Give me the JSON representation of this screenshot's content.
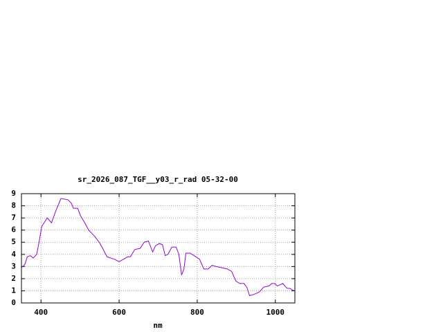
{
  "chart_data": {
    "type": "line",
    "title": "sr_2026_087_TGF__y03_r_rad 05-32-00",
    "x_label": "nm",
    "x": [
      350,
      359,
      365,
      373,
      380,
      389,
      395,
      402,
      416,
      427,
      437,
      451,
      469,
      478,
      483,
      494,
      501,
      512,
      522,
      537,
      549,
      558,
      569,
      579,
      588,
      600,
      611,
      622,
      629,
      640,
      654,
      664,
      675,
      686,
      693,
      703,
      711,
      718,
      725,
      735,
      746,
      753,
      760,
      766,
      771,
      782,
      792,
      806,
      817,
      828,
      838,
      849,
      863,
      877,
      888,
      899,
      909,
      920,
      927,
      934,
      945,
      959,
      970,
      984,
      991,
      998,
      1005,
      1019,
      1030,
      1037,
      1048
    ],
    "series": [
      {
        "name": null,
        "color": "#9400d3",
        "values": [
          2.9,
          3.2,
          3.8,
          3.9,
          3.7,
          4.0,
          5.0,
          6.3,
          7.0,
          6.6,
          7.5,
          8.6,
          8.5,
          8.2,
          7.8,
          7.8,
          7.2,
          6.6,
          6.0,
          5.5,
          5.0,
          4.5,
          3.8,
          3.7,
          3.6,
          3.4,
          3.6,
          3.8,
          3.8,
          4.4,
          4.5,
          5.0,
          5.1,
          4.2,
          4.7,
          4.9,
          4.8,
          3.9,
          4.0,
          4.6,
          4.6,
          4.0,
          2.3,
          2.8,
          4.1,
          4.1,
          3.9,
          3.6,
          2.8,
          2.8,
          3.1,
          3.0,
          2.9,
          2.8,
          2.6,
          1.8,
          1.6,
          1.6,
          1.3,
          0.6,
          0.7,
          0.9,
          1.3,
          1.4,
          1.6,
          1.6,
          1.4,
          1.6,
          1.2,
          1.2,
          1.0
        ]
      }
    ],
    "xlim": [
      350,
      1050
    ],
    "xticks": [
      400,
      600,
      800,
      1000
    ],
    "ylim": [
      0,
      9
    ],
    "yticks": [
      0,
      1,
      2,
      3,
      4,
      5,
      6,
      7,
      8,
      9
    ],
    "grid": true
  }
}
